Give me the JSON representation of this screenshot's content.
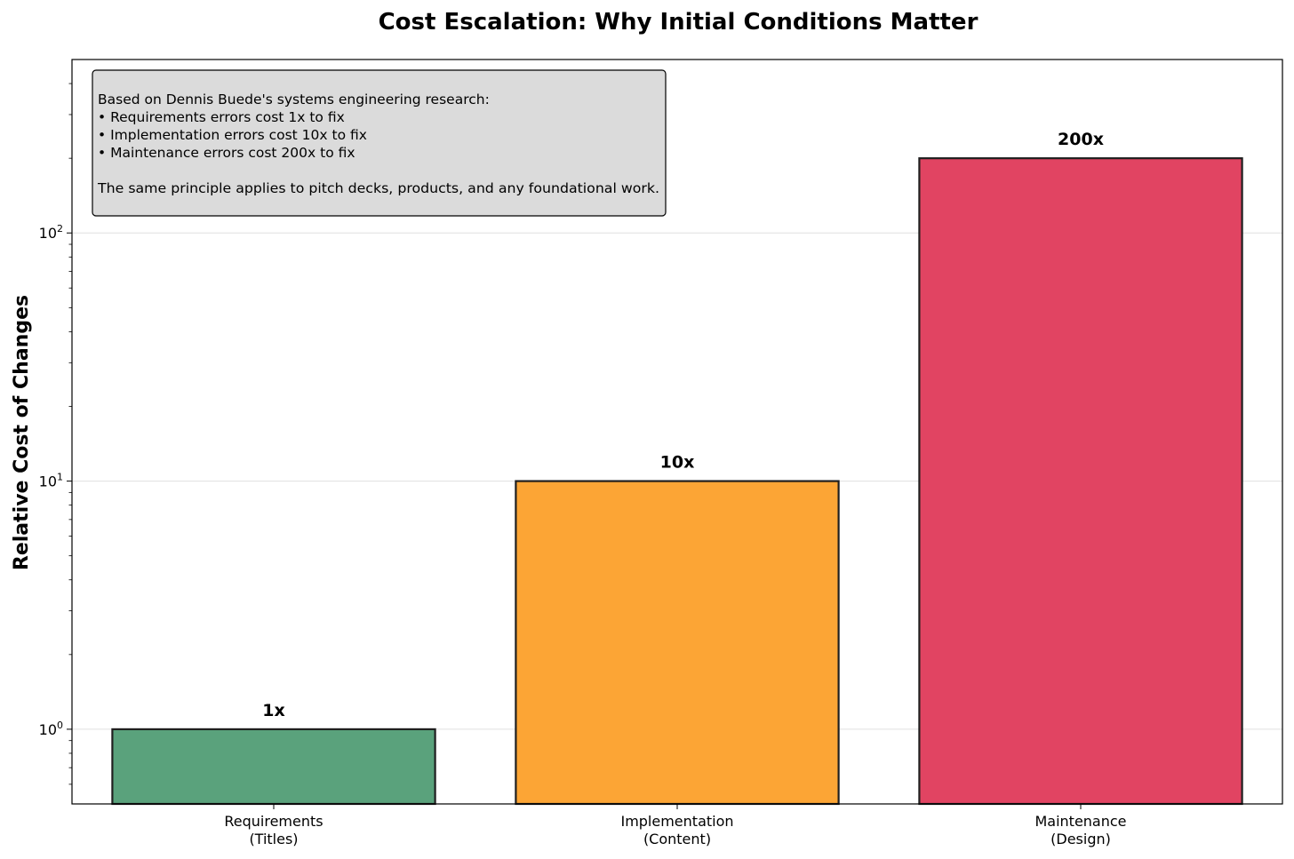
{
  "chart_data": {
    "type": "bar",
    "title": "Cost Escalation: Why Initial Conditions Matter",
    "xlabel": "",
    "ylabel": "Relative Cost of Changes",
    "yscale": "log",
    "ylim": [
      0.5,
      500
    ],
    "yticks": [
      {
        "base": "10",
        "exp": "0",
        "value": 1
      },
      {
        "base": "10",
        "exp": "1",
        "value": 10
      },
      {
        "base": "10",
        "exp": "2",
        "value": 100
      }
    ],
    "categories": [
      [
        "Requirements",
        "(Titles)"
      ],
      [
        "Implementation",
        "(Content)"
      ],
      [
        "Maintenance",
        "(Design)"
      ]
    ],
    "values": [
      1,
      10,
      200
    ],
    "data_labels": [
      "1x",
      "10x",
      "200x"
    ],
    "colors": [
      "#5aa27c",
      "#fca535",
      "#e14462"
    ],
    "grid": "y",
    "annotation": {
      "lines": [
        "Based on Dennis Buede's systems engineering research:",
        "• Requirements errors cost 1x to fix",
        "• Implementation errors cost 10x to fix",
        "• Maintenance errors cost 200x to fix",
        "",
        "The same principle applies to pitch decks, products, and any foundational work."
      ],
      "position": "top-left"
    }
  }
}
